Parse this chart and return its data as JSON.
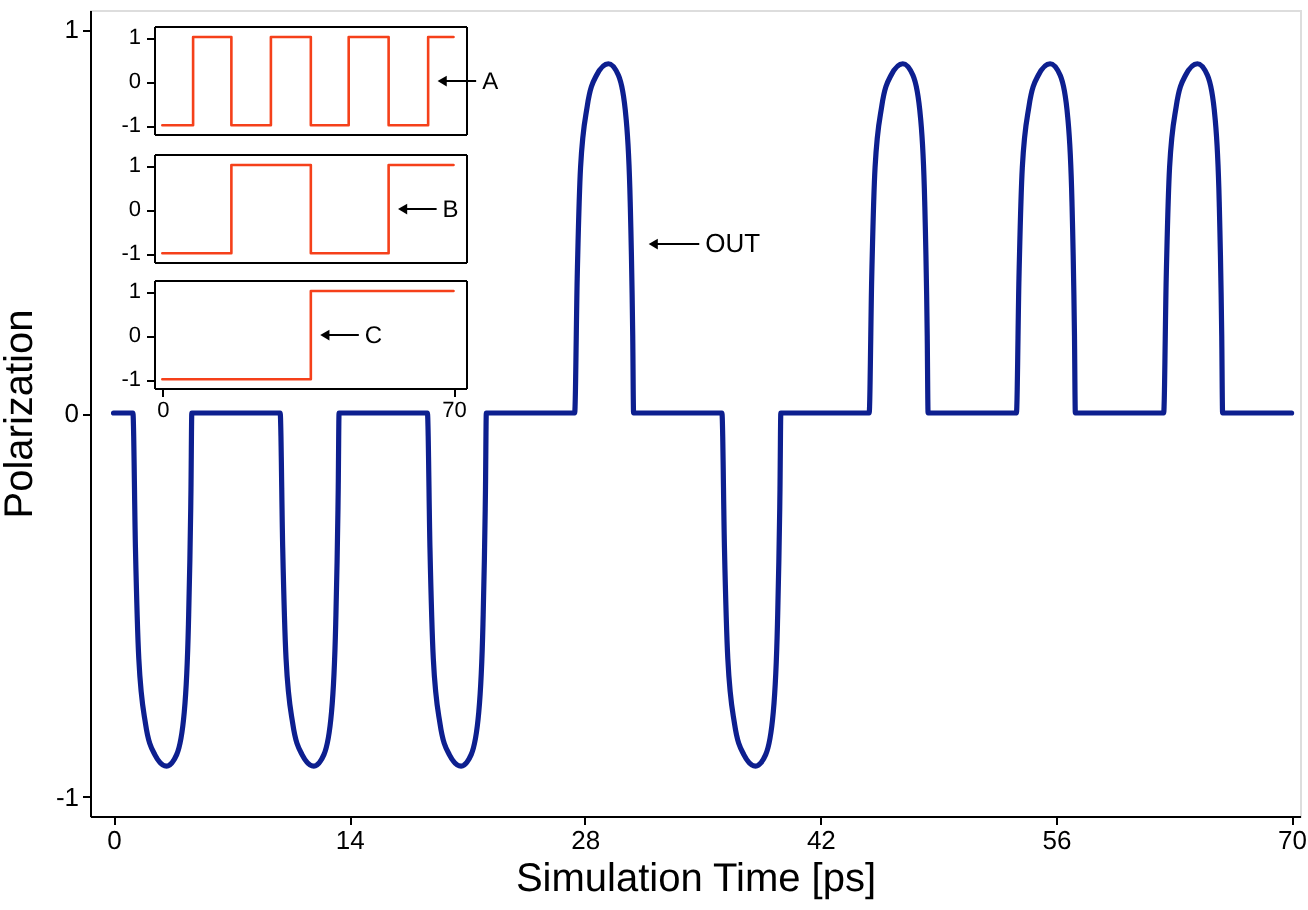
{
  "chart_data": [
    {
      "type": "line",
      "xlabel": "Simulation Time [ps]",
      "ylabel": "Polarization",
      "color": "#0d1f8f",
      "x": [
        0,
        1.15,
        1.3,
        1.5,
        1.9,
        2.45,
        3.15,
        3.75,
        4.2,
        4.45,
        4.6,
        4.65,
        9.9,
        10.05,
        10.25,
        10.65,
        11.2,
        11.9,
        12.5,
        12.95,
        13.2,
        13.35,
        13.4,
        18.65,
        18.8,
        19.0,
        19.4,
        19.95,
        20.65,
        21.25,
        21.7,
        21.95,
        22.1,
        22.15,
        27.4,
        27.55,
        27.75,
        28.15,
        28.7,
        29.4,
        30.0,
        30.45,
        30.7,
        30.85,
        30.9,
        36.15,
        36.3,
        36.5,
        36.9,
        37.45,
        38.15,
        38.75,
        39.2,
        39.45,
        39.6,
        39.65,
        44.9,
        45.05,
        45.25,
        45.65,
        46.2,
        46.9,
        47.5,
        47.95,
        48.2,
        48.35,
        48.4,
        53.65,
        53.8,
        54.0,
        54.4,
        54.95,
        55.65,
        56.25,
        56.7,
        56.95,
        57.1,
        57.15,
        62.4,
        62.55,
        62.75,
        63.15,
        63.7,
        64.4,
        65.0,
        65.45,
        65.7,
        65.85,
        65.9,
        70
      ],
      "values": [
        0,
        0,
        -0.35,
        -0.64,
        -0.81,
        -0.89,
        -0.92,
        -0.89,
        -0.78,
        -0.55,
        -0.2,
        0,
        0,
        -0.35,
        -0.64,
        -0.81,
        -0.89,
        -0.92,
        -0.89,
        -0.78,
        -0.55,
        -0.2,
        0,
        0,
        -0.35,
        -0.64,
        -0.81,
        -0.89,
        -0.92,
        -0.89,
        -0.78,
        -0.55,
        -0.2,
        0,
        0,
        0.35,
        0.64,
        0.8,
        0.88,
        0.91,
        0.88,
        0.77,
        0.55,
        0.2,
        0,
        0,
        -0.35,
        -0.64,
        -0.81,
        -0.89,
        -0.92,
        -0.89,
        -0.78,
        -0.55,
        -0.2,
        0,
        0,
        0.35,
        0.64,
        0.8,
        0.88,
        0.91,
        0.88,
        0.77,
        0.55,
        0.2,
        0,
        0,
        0.35,
        0.64,
        0.8,
        0.88,
        0.91,
        0.88,
        0.77,
        0.55,
        0.2,
        0,
        0,
        0.35,
        0.64,
        0.8,
        0.88,
        0.91,
        0.88,
        0.77,
        0.55,
        0.2,
        0,
        0
      ],
      "xlim": [
        -1.4,
        70.5
      ],
      "ylim": [
        -1.05,
        1.05
      ],
      "xticks": [
        0,
        14,
        28,
        42,
        56,
        70
      ],
      "yticks": [
        -1,
        0,
        1
      ],
      "annotations": [
        {
          "text": "OUT",
          "x": 31,
          "y": 0.44
        }
      ]
    },
    {
      "type": "step",
      "color": "#f5401a",
      "x": [
        0,
        7.4,
        16.6,
        26.1,
        35.7,
        44.8,
        54.4,
        63.9,
        70
      ],
      "values": [
        -1,
        1,
        -1,
        1,
        -1,
        1,
        -1,
        1,
        1
      ],
      "xlim": [
        -2,
        73
      ],
      "ylim": [
        -1.2,
        1.25
      ],
      "yticks": [
        -1,
        0,
        1
      ],
      "tick_labels": "y",
      "annotations": [
        {
          "text": "A",
          "x": 63.9,
          "y": 0
        }
      ]
    },
    {
      "type": "step",
      "color": "#f5401a",
      "x": [
        0,
        16.6,
        35.7,
        54.4,
        70
      ],
      "values": [
        -1,
        1,
        -1,
        1,
        1
      ],
      "xlim": [
        -2,
        73
      ],
      "ylim": [
        -1.2,
        1.25
      ],
      "yticks": [
        -1,
        0,
        1
      ],
      "tick_labels": "y",
      "annotations": [
        {
          "text": "B",
          "x": 54.4,
          "y": 0
        }
      ]
    },
    {
      "type": "step",
      "color": "#f5401a",
      "x": [
        0,
        35.7,
        70
      ],
      "values": [
        -1,
        1,
        1
      ],
      "xlim": [
        -2,
        73
      ],
      "ylim": [
        -1.2,
        1.25
      ],
      "xticks": [
        0,
        70
      ],
      "yticks": [
        -1,
        0,
        1
      ],
      "annotations": [
        {
          "text": "C",
          "x": 35.7,
          "y": 0
        }
      ]
    }
  ]
}
